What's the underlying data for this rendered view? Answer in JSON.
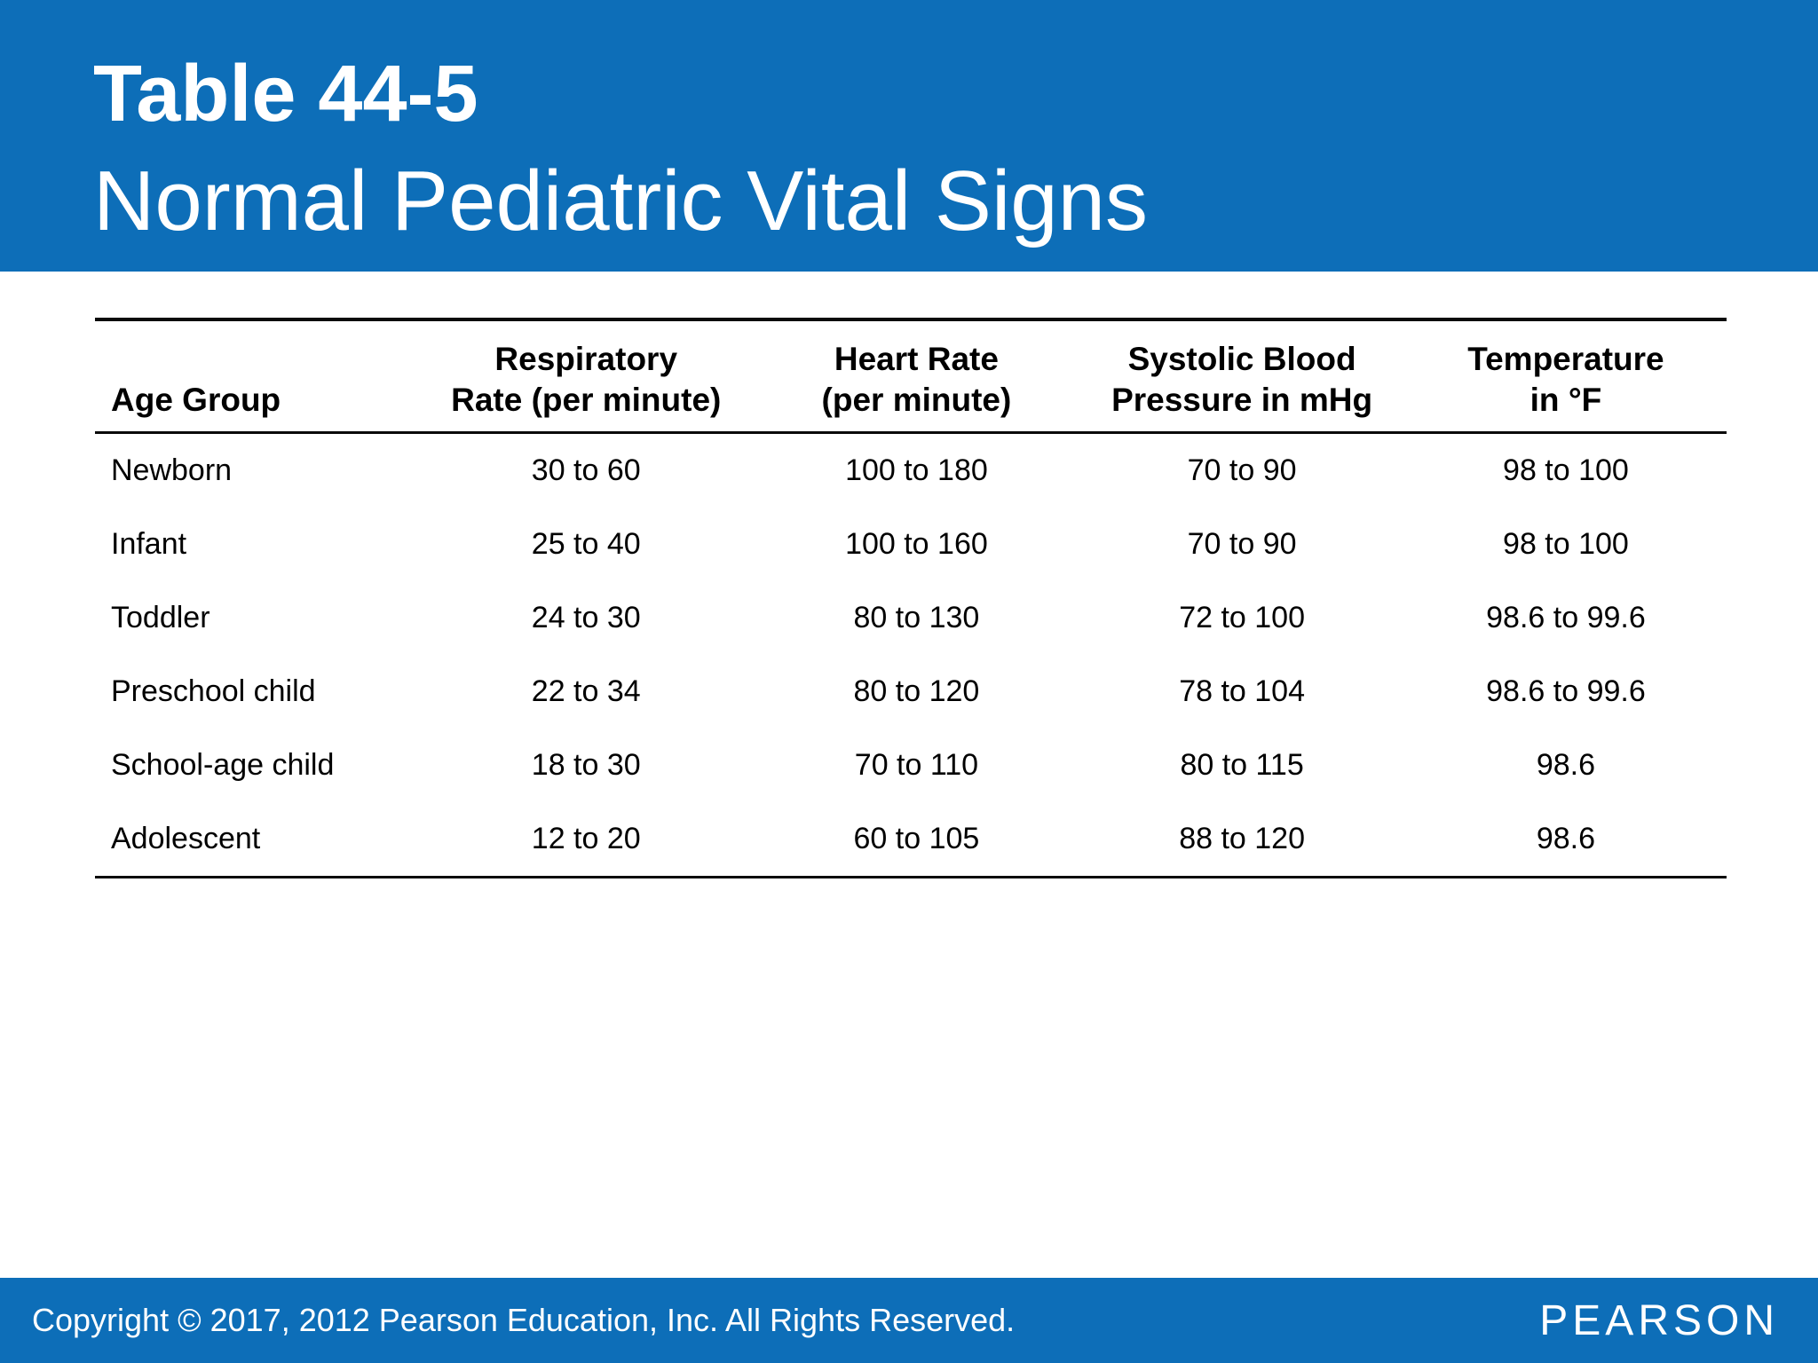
{
  "slide": {
    "kicker": "Table 44-5",
    "title": "Normal Pediatric Vital Signs"
  },
  "table": {
    "headers": [
      {
        "line1": "",
        "line2": "Age Group"
      },
      {
        "line1": "Respiratory",
        "line2": "Rate (per minute)"
      },
      {
        "line1": "Heart Rate",
        "line2": "(per minute)"
      },
      {
        "line1": "Systolic Blood",
        "line2": "Pressure in mHg"
      },
      {
        "line1": "Temperature",
        "line2": "in °F"
      }
    ],
    "rows": [
      [
        "Newborn",
        "30 to 60",
        "100 to 180",
        "70 to 90",
        "98 to 100"
      ],
      [
        "Infant",
        "25 to 40",
        "100 to 160",
        "70 to 90",
        "98 to 100"
      ],
      [
        "Toddler",
        "24 to 30",
        "80 to 130",
        "72 to 100",
        "98.6 to 99.6"
      ],
      [
        "Preschool child",
        "22 to 34",
        "80 to 120",
        "78 to 104",
        "98.6 to 99.6"
      ],
      [
        "School-age child",
        "18 to 30",
        "70 to 110",
        "80 to 115",
        "98.6"
      ],
      [
        "Adolescent",
        "12 to 20",
        "60 to 105",
        "88 to 120",
        "98.6"
      ]
    ]
  },
  "footer": {
    "copyright": "Copyright © 2017, 2012 Pearson Education, Inc. All Rights Reserved.",
    "brand": "PEARSON"
  },
  "colors": {
    "brand_blue": "#0d6eb8",
    "rule_black": "#0a0a0a",
    "text_white": "#ffffff"
  }
}
